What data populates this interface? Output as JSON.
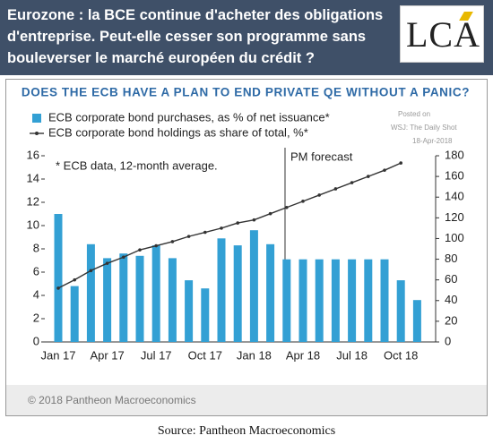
{
  "header": {
    "title_lines": [
      "Eurozone : la BCE continue d'acheter des obligations",
      "d'entreprise. Peut-elle cesser son programme sans",
      "bouleverser le marché européen du crédit ?"
    ],
    "logo": "LCA"
  },
  "chart_data": {
    "type": "combo",
    "title": "DOES THE ECB HAVE A PLAN TO END PRIVATE QE WITHOUT A PANIC?",
    "categories": [
      "Jan 17",
      null,
      null,
      "Apr 17",
      null,
      null,
      "Jul 17",
      null,
      null,
      "Oct 17",
      null,
      null,
      "Jan 18",
      null,
      null,
      "Apr 18",
      null,
      null,
      "Jul 18",
      null,
      null,
      "Oct 18",
      null
    ],
    "series": [
      {
        "name": "ECB corporate bond purchases, as % of net issuance*",
        "type": "bar",
        "color": "#33a0d4",
        "values": [
          11.0,
          4.8,
          8.4,
          7.2,
          7.6,
          7.4,
          8.3,
          7.2,
          5.3,
          4.6,
          8.9,
          8.3,
          9.6,
          8.4,
          7.1,
          7.1,
          7.1,
          7.1,
          7.1,
          7.1,
          7.1,
          5.3,
          3.6
        ]
      },
      {
        "name": "ECB corporate bond holdings as share of total, %*",
        "type": "line",
        "axis": "y2",
        "color": "#333333",
        "values": [
          52,
          60,
          69,
          76,
          82,
          89,
          93,
          97,
          102,
          106,
          110,
          115,
          118,
          124,
          130,
          136,
          142,
          148,
          154,
          160,
          166,
          173,
          null
        ]
      }
    ],
    "ylim": [
      0,
      16
    ],
    "yticks": [
      0,
      2,
      4,
      6,
      8,
      10,
      12,
      14,
      16
    ],
    "y2lim": [
      0,
      180
    ],
    "y2ticks": [
      0,
      20,
      40,
      60,
      80,
      100,
      120,
      140,
      160,
      180
    ],
    "annotations": {
      "note": "* ECB data, 12-month average.",
      "forecast": "PM forecast",
      "posted": [
        "Posted on",
        "WSJ: The Daily Shot",
        "18-Apr-2018"
      ]
    },
    "credit": "© 2018 Pantheon Macroeconomics"
  },
  "source": "Source: Pantheon Macroeconomics"
}
